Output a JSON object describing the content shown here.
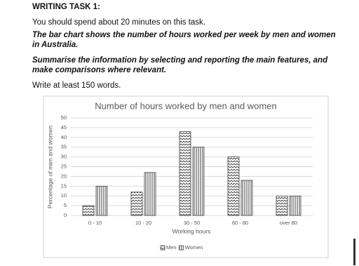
{
  "document": {
    "heading": "WRITING TASK 1:",
    "instruction": "You should spend about 20 minutes on this task.",
    "prompt": "The bar chart shows the number of hours worked per week by men and women in Australia.",
    "task": "Summarise the information by selecting and reporting the main features, and make comparisons where relevant.",
    "word_count": "Write at least 150 words."
  },
  "chart_data": {
    "type": "bar",
    "title": "Number of hours worked by men and women",
    "x_label": "Working hours",
    "y_label": "Percentage of men and women",
    "categories": [
      "0 - 10",
      "10 - 20",
      "30 - 50",
      "60 - 80",
      "over 80"
    ],
    "series": [
      {
        "name": "Men",
        "color": "#404040",
        "values": [
          5,
          12,
          43,
          30,
          10
        ]
      },
      {
        "name": "Women",
        "color": "#404040",
        "values": [
          15,
          22,
          35,
          18,
          10
        ]
      }
    ],
    "ylim": [
      0,
      50
    ],
    "yticks": [
      0,
      5,
      10,
      15,
      20,
      25,
      30,
      35,
      40,
      45,
      50
    ],
    "grid": true,
    "legend": "bottom"
  }
}
